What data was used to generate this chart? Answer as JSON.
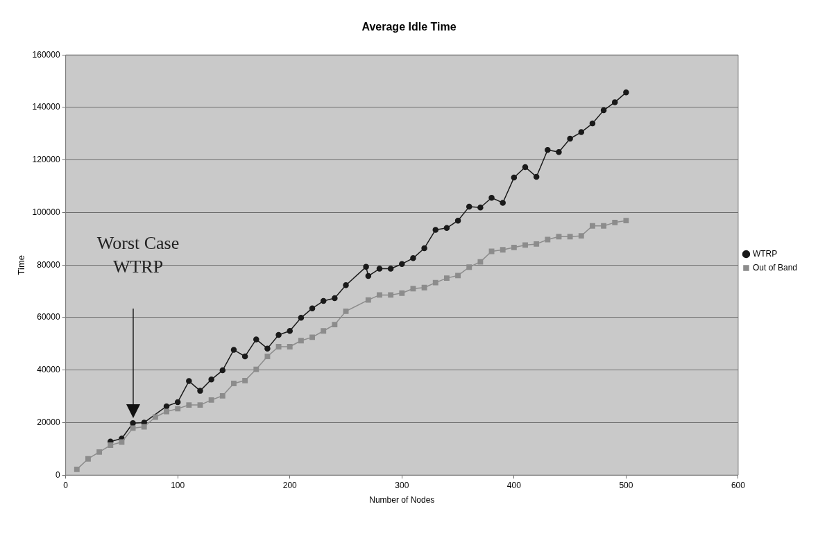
{
  "chart_data": {
    "type": "line",
    "title": "Average Idle Time",
    "xlabel": "Number of Nodes",
    "ylabel": "Time",
    "xlim": [
      0,
      600
    ],
    "xticks": [
      0,
      100,
      200,
      300,
      400,
      500,
      600
    ],
    "ylim": [
      0,
      160000
    ],
    "yticks": [
      0,
      20000,
      40000,
      60000,
      80000,
      100000,
      120000,
      140000,
      160000
    ],
    "grid": "y",
    "legend": "right",
    "line_style": "solid",
    "annotations": [
      "Worst Case WTRP"
    ],
    "series": [
      {
        "name": "WTRP",
        "color": "#1a1a1a",
        "marker": "circle",
        "x": [
          40,
          50,
          60,
          70,
          90,
          100,
          110,
          120,
          130,
          140,
          150,
          160,
          170,
          180,
          190,
          200,
          210,
          220,
          230,
          240,
          250,
          268,
          270,
          280,
          290,
          300,
          310,
          320,
          330,
          340,
          350,
          360,
          370,
          380,
          390,
          400,
          410,
          420,
          430,
          440,
          450,
          460,
          470,
          480,
          490,
          500
        ],
        "values": [
          12800,
          13900,
          19800,
          20000,
          26200,
          27800,
          35800,
          32100,
          36400,
          39900,
          47700,
          45200,
          51700,
          48200,
          53400,
          54900,
          59900,
          63500,
          66300,
          67400,
          72300,
          79300,
          75800,
          78600,
          78600,
          80400,
          82600,
          86400,
          93400,
          94100,
          96900,
          102200,
          101900,
          105600,
          103700,
          113300,
          117300,
          113600,
          123800,
          123000,
          128100,
          130600,
          133900,
          138900,
          142000,
          145700
        ]
      },
      {
        "name": "Out of Band",
        "color": "#8c8c8c",
        "marker": "square",
        "x": [
          10,
          20,
          30,
          40,
          50,
          60,
          70,
          80,
          90,
          100,
          110,
          120,
          130,
          140,
          150,
          160,
          170,
          180,
          190,
          200,
          210,
          220,
          230,
          240,
          250,
          270,
          280,
          290,
          300,
          310,
          320,
          330,
          340,
          350,
          360,
          370,
          380,
          390,
          400,
          410,
          420,
          430,
          440,
          450,
          460,
          470,
          480,
          490,
          500
        ],
        "values": [
          2200,
          6200,
          8800,
          11400,
          12600,
          17900,
          18400,
          22100,
          24200,
          25300,
          26700,
          26700,
          28600,
          30200,
          34900,
          36000,
          40300,
          45200,
          48900,
          48900,
          51200,
          52500,
          54900,
          57300,
          62400,
          66700,
          68600,
          68600,
          69300,
          71000,
          71400,
          73300,
          75000,
          76000,
          79200,
          81200,
          85200,
          85800,
          86700,
          87600,
          88000,
          89700,
          90800,
          90800,
          91100,
          94900,
          94900,
          96200,
          96900
        ]
      }
    ]
  }
}
